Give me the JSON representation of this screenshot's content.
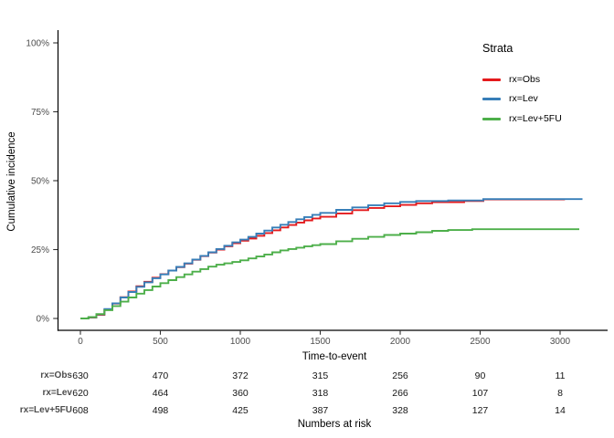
{
  "figure": {
    "y_axis_title": "Cumulative incidence",
    "x_axis_title": "Time-to-event",
    "risk_table_title": "Numbers at risk",
    "legend": {
      "title": "Strata",
      "items": [
        {
          "label": "rx=Obs",
          "color": "#E41A1C"
        },
        {
          "label": "rx=Lev",
          "color": "#377EB8"
        },
        {
          "label": "rx=Lev+5FU",
          "color": "#4DAF4A"
        }
      ]
    }
  },
  "chart_data": {
    "type": "line",
    "subtype": "step-cumulative-incidence",
    "title": "",
    "xlabel": "Time-to-event",
    "ylabel": "Cumulative incidence",
    "xlim": [
      0,
      3300
    ],
    "ylim": [
      0,
      100
    ],
    "grid": false,
    "legend_position": "right-top",
    "x_ticks": [
      0,
      500,
      1000,
      1500,
      2000,
      2500,
      3000
    ],
    "x_tick_labels": [
      "0",
      "500",
      "1000",
      "1500",
      "2000",
      "2500",
      "3000"
    ],
    "y_ticks": [
      0,
      25,
      50,
      75,
      100
    ],
    "y_tick_labels": [
      "0%",
      "25%",
      "50%",
      "75%",
      "100%"
    ],
    "series": [
      {
        "name": "rx=Obs",
        "color": "#E41A1C",
        "points": [
          [
            0,
            0
          ],
          [
            50,
            0.3
          ],
          [
            100,
            1.3
          ],
          [
            150,
            3.2
          ],
          [
            200,
            5.4
          ],
          [
            250,
            7.7
          ],
          [
            300,
            9.8
          ],
          [
            350,
            11.7
          ],
          [
            400,
            13.3
          ],
          [
            450,
            14.8
          ],
          [
            500,
            16.1
          ],
          [
            550,
            17.4
          ],
          [
            600,
            18.6
          ],
          [
            650,
            19.9
          ],
          [
            700,
            21.3
          ],
          [
            750,
            22.6
          ],
          [
            800,
            23.9
          ],
          [
            850,
            25.0
          ],
          [
            900,
            26.2
          ],
          [
            950,
            27.3
          ],
          [
            1000,
            28.2
          ],
          [
            1050,
            29.0
          ],
          [
            1100,
            30.0
          ],
          [
            1150,
            31.0
          ],
          [
            1200,
            32.0
          ],
          [
            1250,
            33.0
          ],
          [
            1300,
            33.9
          ],
          [
            1350,
            34.8
          ],
          [
            1400,
            35.6
          ],
          [
            1450,
            36.3
          ],
          [
            1500,
            36.9
          ],
          [
            1600,
            38.1
          ],
          [
            1700,
            39.3
          ],
          [
            1800,
            40.1
          ],
          [
            1900,
            40.7
          ],
          [
            2000,
            41.2
          ],
          [
            2100,
            41.8
          ],
          [
            2200,
            42.2
          ],
          [
            2400,
            42.6
          ],
          [
            2520,
            43.2
          ],
          [
            3030,
            43.2
          ]
        ]
      },
      {
        "name": "rx=Lev",
        "color": "#377EB8",
        "points": [
          [
            0,
            0
          ],
          [
            50,
            0.4
          ],
          [
            100,
            1.5
          ],
          [
            150,
            3.4
          ],
          [
            200,
            5.5
          ],
          [
            250,
            7.6
          ],
          [
            300,
            9.6
          ],
          [
            350,
            11.5
          ],
          [
            400,
            13.1
          ],
          [
            450,
            14.6
          ],
          [
            500,
            16.0
          ],
          [
            550,
            17.4
          ],
          [
            600,
            18.7
          ],
          [
            650,
            20.0
          ],
          [
            700,
            21.4
          ],
          [
            750,
            22.7
          ],
          [
            800,
            24.0
          ],
          [
            850,
            25.2
          ],
          [
            900,
            26.4
          ],
          [
            950,
            27.6
          ],
          [
            1000,
            28.6
          ],
          [
            1050,
            29.6
          ],
          [
            1100,
            30.8
          ],
          [
            1150,
            31.9
          ],
          [
            1200,
            33.0
          ],
          [
            1250,
            34.0
          ],
          [
            1300,
            35.0
          ],
          [
            1350,
            36.0
          ],
          [
            1400,
            36.8
          ],
          [
            1450,
            37.6
          ],
          [
            1500,
            38.3
          ],
          [
            1600,
            39.4
          ],
          [
            1700,
            40.3
          ],
          [
            1800,
            41.1
          ],
          [
            1900,
            41.8
          ],
          [
            2000,
            42.3
          ],
          [
            2100,
            42.6
          ],
          [
            2300,
            42.8
          ],
          [
            2520,
            43.3
          ],
          [
            3140,
            43.3
          ]
        ]
      },
      {
        "name": "rx=Lev+5FU",
        "color": "#4DAF4A",
        "points": [
          [
            0,
            0
          ],
          [
            50,
            0.5
          ],
          [
            100,
            1.6
          ],
          [
            150,
            3.0
          ],
          [
            200,
            4.5
          ],
          [
            250,
            6.1
          ],
          [
            300,
            7.6
          ],
          [
            350,
            9.0
          ],
          [
            400,
            10.3
          ],
          [
            450,
            11.6
          ],
          [
            500,
            12.8
          ],
          [
            550,
            13.9
          ],
          [
            600,
            15.0
          ],
          [
            650,
            16.0
          ],
          [
            700,
            17.0
          ],
          [
            750,
            17.9
          ],
          [
            800,
            18.8
          ],
          [
            850,
            19.5
          ],
          [
            900,
            20.0
          ],
          [
            950,
            20.5
          ],
          [
            1000,
            21.1
          ],
          [
            1050,
            21.8
          ],
          [
            1100,
            22.5
          ],
          [
            1150,
            23.2
          ],
          [
            1200,
            24.0
          ],
          [
            1250,
            24.7
          ],
          [
            1300,
            25.2
          ],
          [
            1350,
            25.7
          ],
          [
            1400,
            26.2
          ],
          [
            1450,
            26.6
          ],
          [
            1500,
            27.0
          ],
          [
            1600,
            28.0
          ],
          [
            1700,
            28.9
          ],
          [
            1800,
            29.6
          ],
          [
            1900,
            30.3
          ],
          [
            2000,
            30.8
          ],
          [
            2100,
            31.3
          ],
          [
            2200,
            31.8
          ],
          [
            2300,
            32.1
          ],
          [
            2450,
            32.4
          ],
          [
            3120,
            32.4
          ]
        ]
      }
    ]
  },
  "risk_table": {
    "title": "Numbers at risk",
    "time_points": [
      0,
      500,
      1000,
      1500,
      2000,
      2500,
      3000
    ],
    "rows": [
      {
        "label": "rx=Obs",
        "values": [
          "630",
          "470",
          "372",
          "315",
          "256",
          "90",
          "11"
        ]
      },
      {
        "label": "rx=Lev",
        "values": [
          "620",
          "464",
          "360",
          "318",
          "266",
          "107",
          "8"
        ]
      },
      {
        "label": "rx=Lev+5FU",
        "values": [
          "608",
          "498",
          "425",
          "387",
          "328",
          "127",
          "14"
        ]
      }
    ]
  }
}
